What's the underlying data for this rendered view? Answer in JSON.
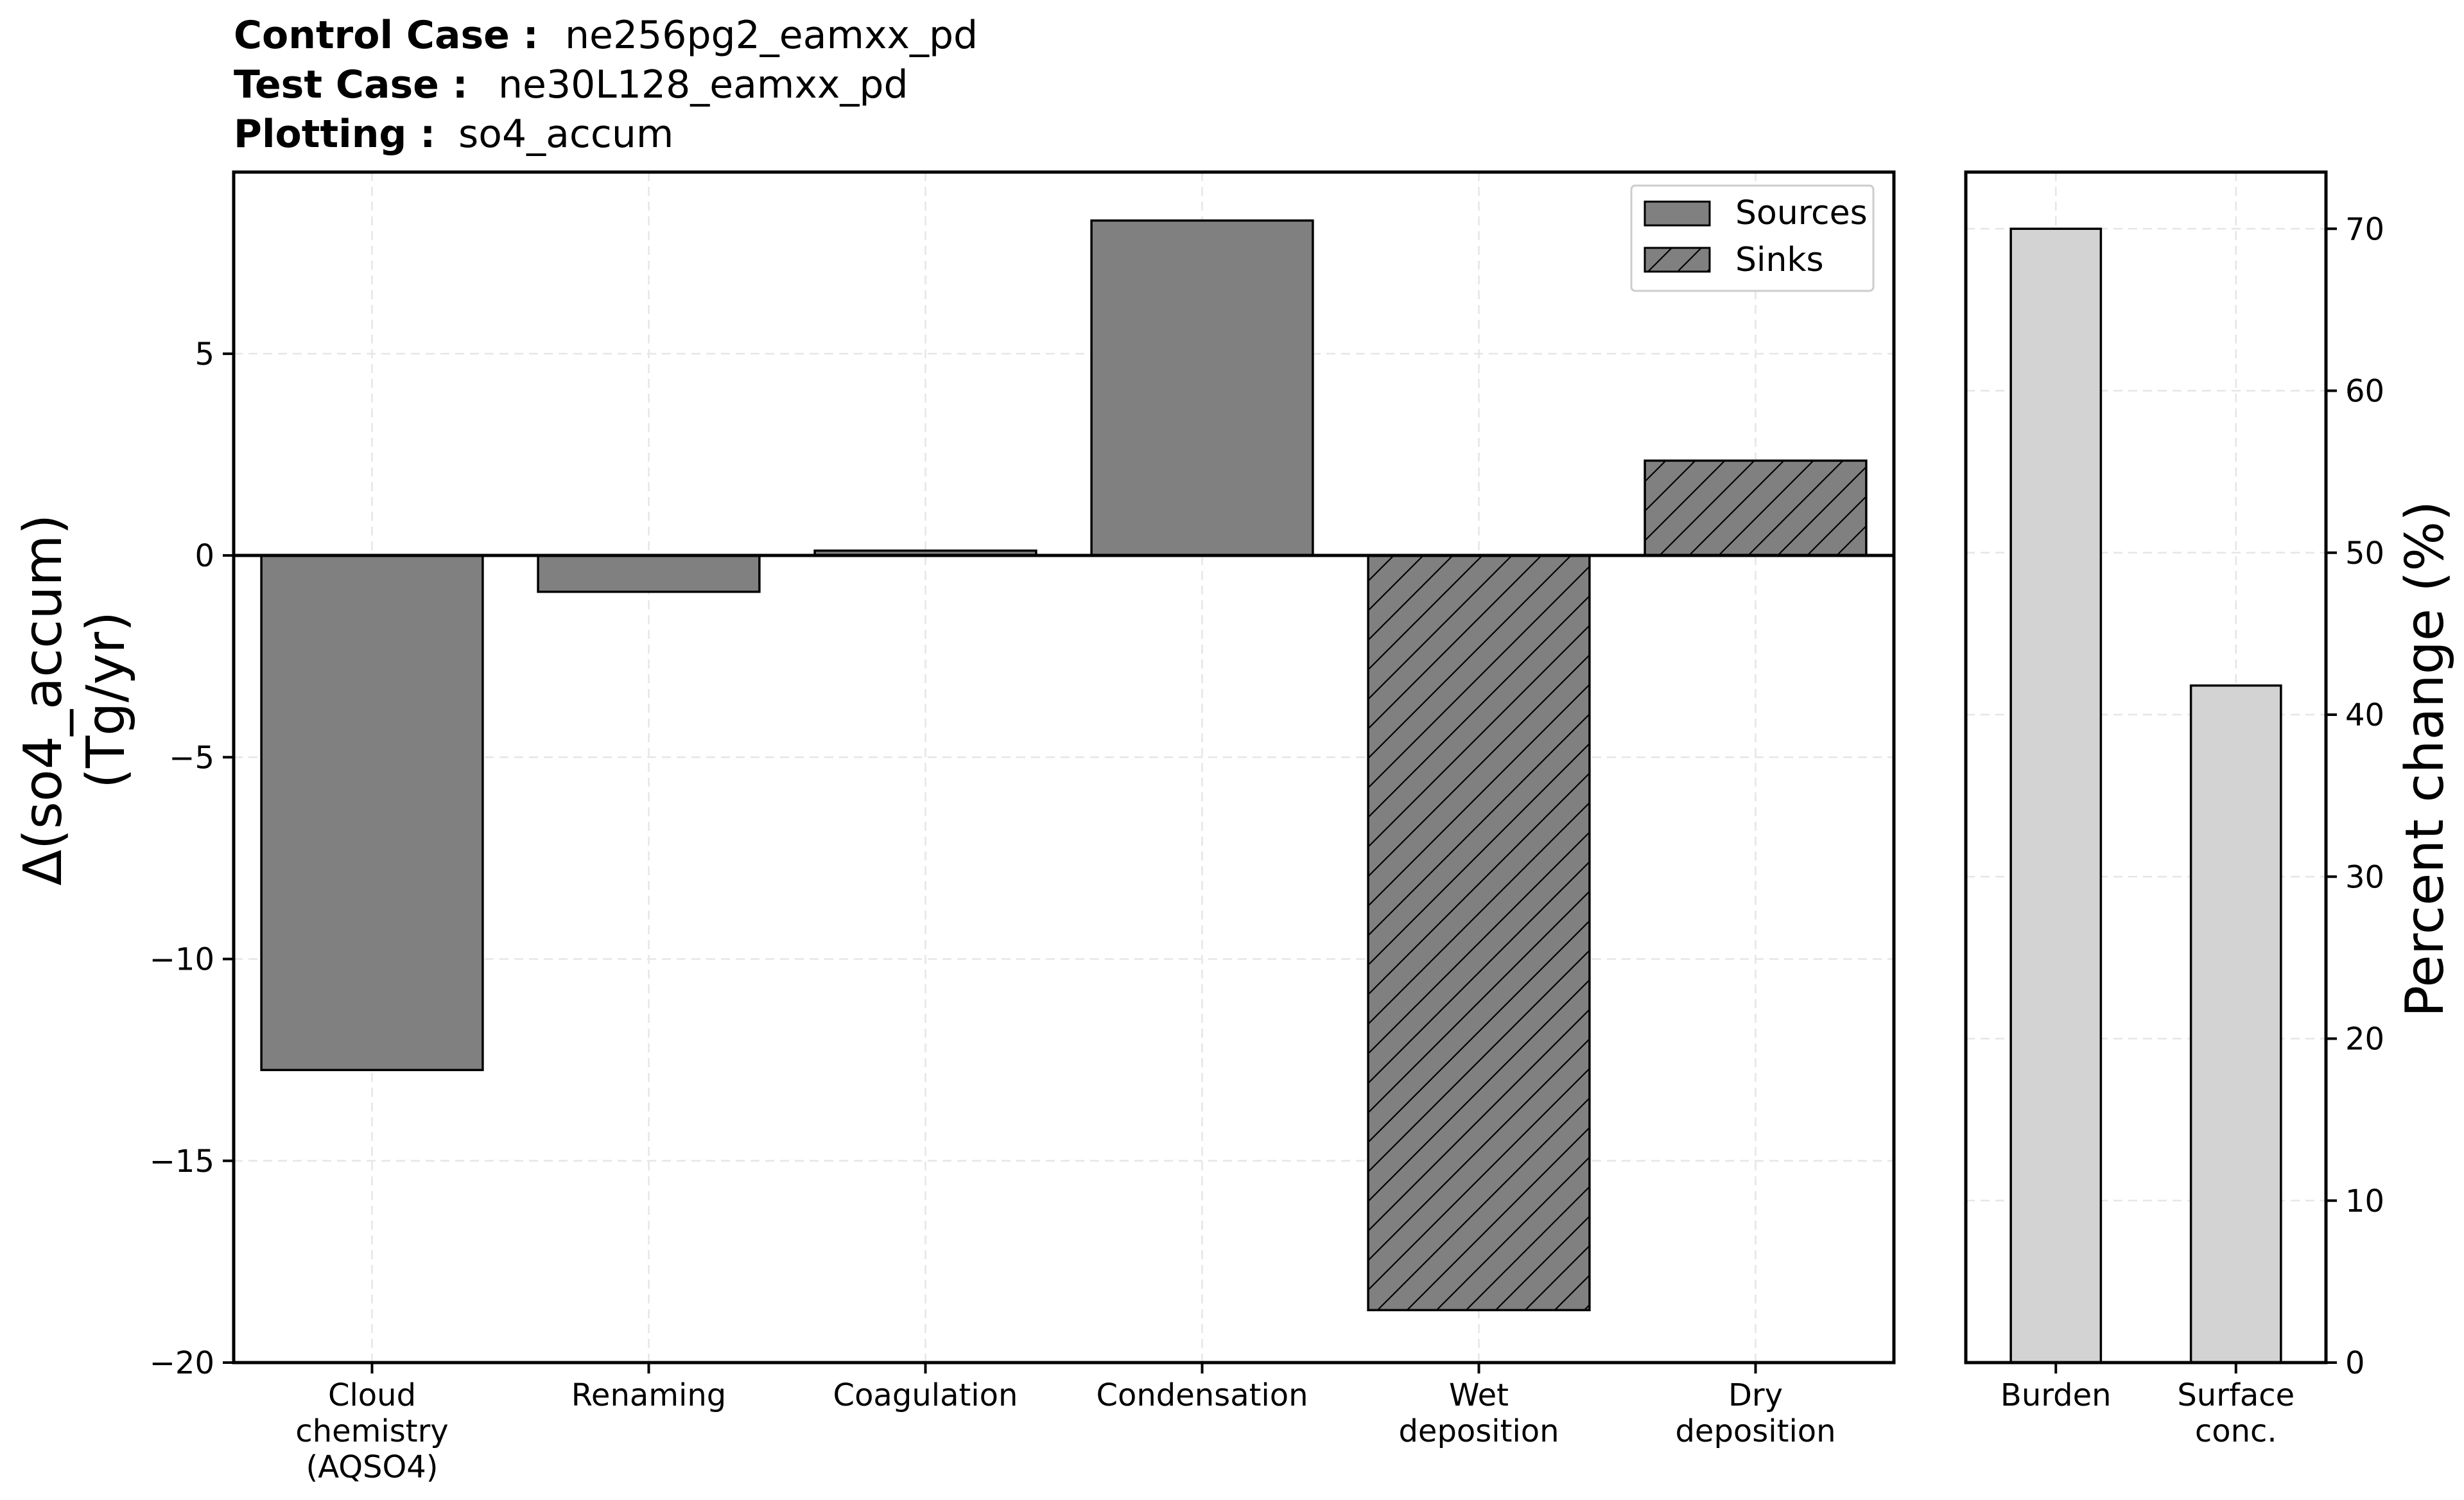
{
  "header": {
    "control_label": "Control Case :",
    "control_value": "ne256pg2_eamxx_pd",
    "test_label": "Test Case :",
    "test_value": "ne30L128_eamxx_pd",
    "plotting_label": "Plotting :",
    "plotting_value": "so4_accum"
  },
  "colors": {
    "source_bar": "#808080",
    "sink_bar": "#808080",
    "percent_bar": "#d3d3d3",
    "edge": "#000000",
    "grid": "#e6e6e6"
  },
  "chart_data": [
    {
      "type": "bar",
      "ylabel_line1": "Δ(so4_accum)",
      "ylabel_line2": "(Tg/yr)",
      "ylim": [
        -20,
        9.5
      ],
      "yticks": [
        5,
        0,
        -5,
        -10,
        -15,
        -20
      ],
      "ytick_labels": [
        "5",
        "0",
        "−5",
        "−10",
        "−15",
        "−20"
      ],
      "grid": true,
      "legend": {
        "placement": "top-right",
        "entries": [
          "Sources",
          "Sinks"
        ]
      },
      "categories": [
        {
          "lines": [
            "Cloud",
            "chemistry",
            "(AQSO4)"
          ],
          "value": -12.75,
          "kind": "source"
        },
        {
          "lines": [
            "Renaming"
          ],
          "value": -0.9,
          "kind": "source"
        },
        {
          "lines": [
            "Coagulation"
          ],
          "value": 0.12,
          "kind": "source"
        },
        {
          "lines": [
            "Condensation"
          ],
          "value": 8.3,
          "kind": "source"
        },
        {
          "lines": [
            "Wet",
            "deposition"
          ],
          "value": -18.7,
          "kind": "sink"
        },
        {
          "lines": [
            "Dry",
            "deposition"
          ],
          "value": 2.35,
          "kind": "sink"
        }
      ]
    },
    {
      "type": "bar",
      "ylabel": "Percent change (%)",
      "ylim": [
        0,
        73.5
      ],
      "yticks": [
        0,
        10,
        20,
        30,
        40,
        50,
        60,
        70
      ],
      "ytick_labels": [
        "0",
        "10",
        "20",
        "30",
        "40",
        "50",
        "60",
        "70"
      ],
      "grid": true,
      "categories": [
        {
          "lines": [
            "Burden"
          ],
          "value": 70
        },
        {
          "lines": [
            "Surface",
            "conc."
          ],
          "value": 41.8
        }
      ]
    }
  ]
}
